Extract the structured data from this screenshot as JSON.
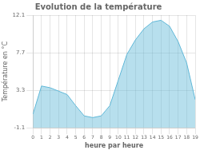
{
  "chart_data": {
    "type": "area",
    "title": "Evolution de la température",
    "xlabel": "heure par heure",
    "ylabel": "Température en °C",
    "x": [
      0,
      1,
      2,
      3,
      4,
      5,
      6,
      7,
      8,
      9,
      10,
      11,
      12,
      13,
      14,
      15,
      16,
      17,
      18,
      19
    ],
    "values": [
      0.5,
      3.8,
      3.6,
      3.2,
      2.8,
      1.5,
      0.3,
      0.1,
      0.3,
      1.5,
      4.5,
      7.5,
      9.2,
      10.5,
      11.3,
      11.5,
      10.8,
      9.0,
      6.5,
      2.2
    ],
    "color": "#60b8d8",
    "xlim": [
      0,
      19
    ],
    "ylim": [
      -1.1,
      12.1
    ],
    "xticks": [
      0,
      1,
      2,
      3,
      4,
      5,
      6,
      7,
      8,
      9,
      10,
      11,
      12,
      13,
      14,
      15,
      16,
      17,
      18,
      19
    ],
    "yticks": [
      -1.1,
      3.3,
      7.7,
      12.1
    ],
    "grid": true
  }
}
